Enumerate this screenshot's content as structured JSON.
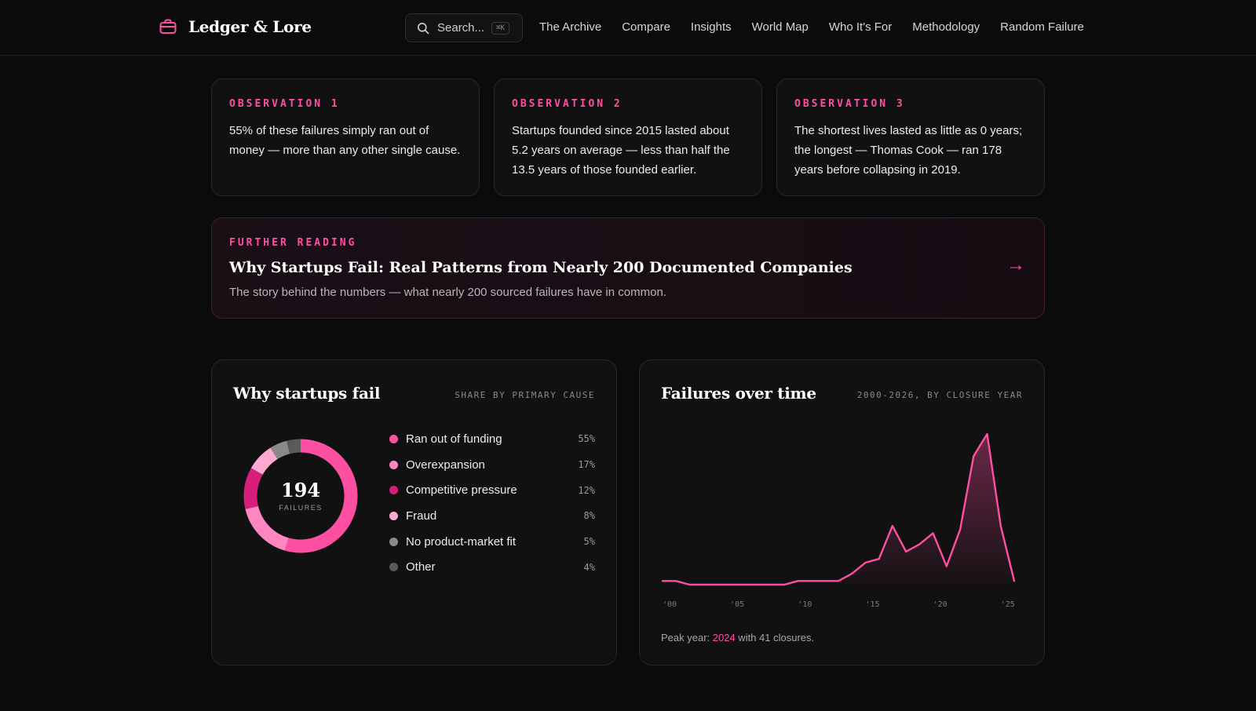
{
  "header": {
    "brand": "Ledger & Lore",
    "search": {
      "placeholder": "Search...",
      "shortcut": "⌘K"
    },
    "nav": [
      "The Archive",
      "Compare",
      "Insights",
      "World Map",
      "Who It's For",
      "Methodology",
      "Random Failure"
    ]
  },
  "observations": [
    {
      "label": "OBSERVATION 1",
      "text": "55% of these failures simply ran out of money — more than any other single cause."
    },
    {
      "label": "OBSERVATION 2",
      "text": "Startups founded since 2015 lasted about 5.2 years on average — less than half the 13.5 years of those founded earlier."
    },
    {
      "label": "OBSERVATION 3",
      "text": "The shortest lives lasted as little as 0 years; the longest — Thomas Cook — ran 178 years before collapsing in 2019."
    }
  ],
  "further_reading": {
    "label": "FURTHER READING",
    "title": "Why Startups Fail: Real Patterns from Nearly 200 Documented Companies",
    "subtitle": "The story behind the numbers — what nearly 200 sourced failures have in common.",
    "arrow": "→"
  },
  "panels": {
    "causes": {
      "title": "Why startups fail",
      "meta": "SHARE BY PRIMARY CAUSE",
      "total": "194",
      "total_label": "FAILURES"
    },
    "timeline": {
      "title": "Failures over time",
      "meta": "2000-2026, BY CLOSURE YEAR",
      "peak_prefix": "Peak year: ",
      "peak_year": "2024",
      "peak_suffix": " with 41 closures."
    }
  },
  "chart_data": [
    {
      "type": "pie",
      "title": "Why startups fail",
      "subtitle": "SHARE BY PRIMARY CAUSE",
      "center_value": 194,
      "categories": [
        "Ran out of funding",
        "Overexpansion",
        "Competitive pressure",
        "Fraud",
        "No product-market fit",
        "Other"
      ],
      "values": [
        55,
        17,
        12,
        8,
        5,
        4
      ],
      "labels": [
        "55%",
        "17%",
        "12%",
        "8%",
        "5%",
        "4%"
      ],
      "colors": [
        "#ff4fa3",
        "#ff86c0",
        "#d61f7a",
        "#ffa8d1",
        "#8a8a8a",
        "#5a5a5a"
      ]
    },
    {
      "type": "area",
      "title": "Failures over time",
      "subtitle": "2000-2026, BY CLOSURE YEAR",
      "x": [
        2000,
        2001,
        2002,
        2003,
        2004,
        2005,
        2006,
        2007,
        2008,
        2009,
        2010,
        2011,
        2012,
        2013,
        2014,
        2015,
        2016,
        2017,
        2018,
        2019,
        2020,
        2021,
        2022,
        2023,
        2024,
        2025,
        2026
      ],
      "y": [
        1,
        1,
        0,
        0,
        0,
        0,
        0,
        0,
        0,
        0,
        1,
        1,
        1,
        1,
        3,
        6,
        7,
        16,
        9,
        11,
        14,
        5,
        15,
        35,
        41,
        16,
        1
      ],
      "xticks": [
        "'00",
        "'05",
        "'10",
        "'15",
        "'20",
        "'25"
      ],
      "xtick_values": [
        2000,
        2005,
        2010,
        2015,
        2020,
        2025
      ],
      "xlim": [
        2000,
        2026
      ],
      "ylim": [
        0,
        41
      ],
      "grid": false,
      "color": "#ff4fa3"
    }
  ]
}
